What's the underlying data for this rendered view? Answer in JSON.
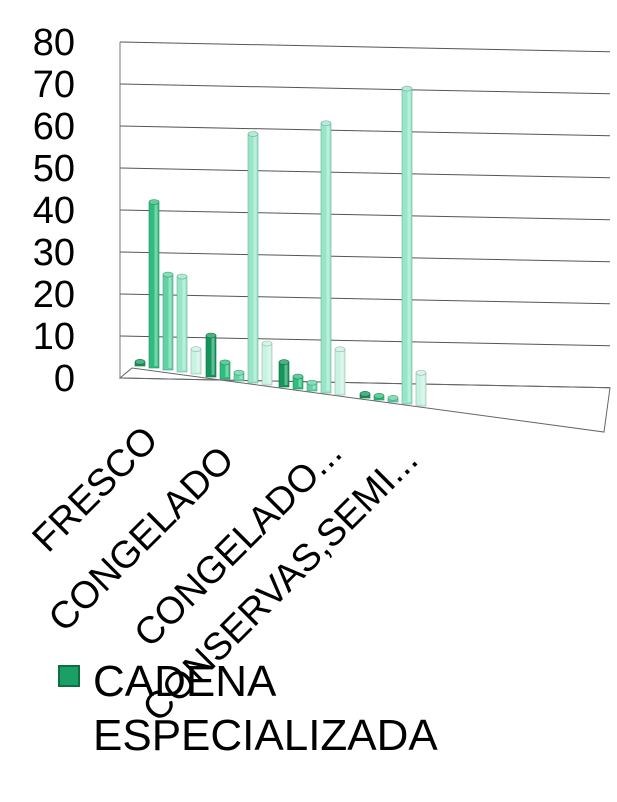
{
  "chart_data": {
    "type": "bar",
    "title": "",
    "xlabel": "",
    "ylabel": "",
    "ylim": [
      0,
      80
    ],
    "yticks": [
      "0",
      "10",
      "20",
      "30",
      "40",
      "50",
      "60",
      "70",
      "80"
    ],
    "categories": [
      "FRESCO",
      "CONGELADO",
      "CONGELADO...",
      "CONSERVAS,SEMI..."
    ],
    "series": [
      {
        "name": "CADENA ESPECIALIZADA",
        "values": [
          1,
          10,
          6,
          1
        ]
      },
      {
        "name": "",
        "values": [
          40,
          4,
          3,
          1
        ]
      },
      {
        "name": "",
        "values": [
          23,
          2,
          2,
          1
        ]
      },
      {
        "name": "",
        "values": [
          23,
          60,
          65,
          76
        ]
      },
      {
        "name": "",
        "values": [
          6,
          10,
          11,
          8
        ]
      }
    ],
    "series_colors": [
      "#13965a",
      "#2ebd7e",
      "#5fd3a3",
      "#97e6c8",
      "#c8f2e2"
    ],
    "grid": true,
    "legend": {
      "position": "bottom-left",
      "label": "CADENA ESPECIALIZADA"
    }
  }
}
